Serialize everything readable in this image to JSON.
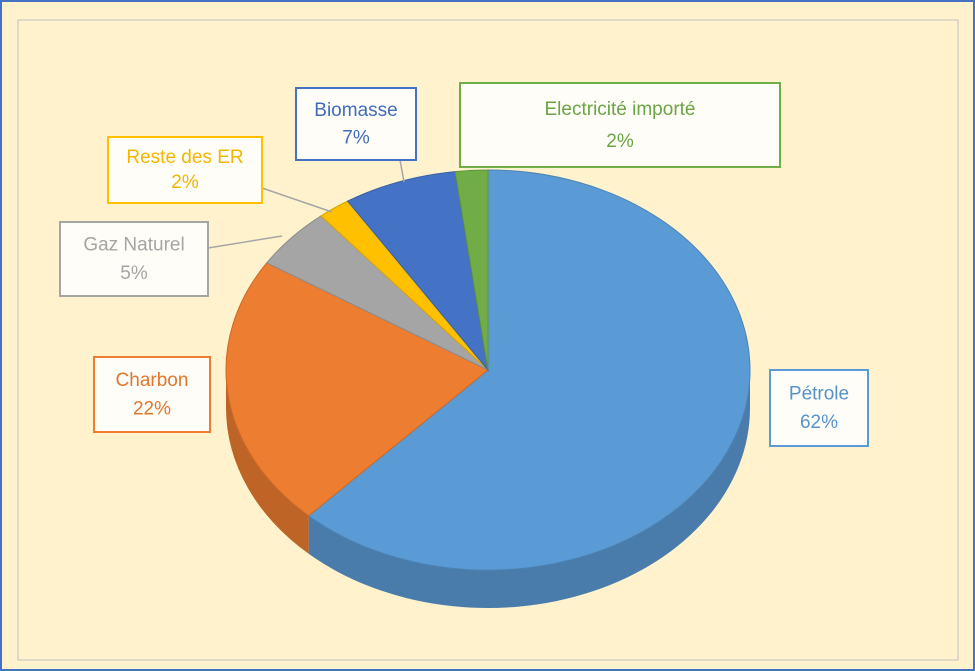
{
  "chart_data": {
    "type": "pie",
    "categories": [
      "Pétrole",
      "Charbon",
      "Gaz Naturel",
      "Reste des ER",
      "Biomasse",
      "Electricité importé"
    ],
    "values": [
      62,
      22,
      5,
      2,
      7,
      2
    ],
    "value_labels": [
      "62%",
      "22%",
      "5%",
      "2%",
      "7%",
      "2%"
    ],
    "colors": [
      "#5b9bd5",
      "#ed7d31",
      "#a5a5a5",
      "#ffc000",
      "#4472c4",
      "#70ad47"
    ]
  }
}
